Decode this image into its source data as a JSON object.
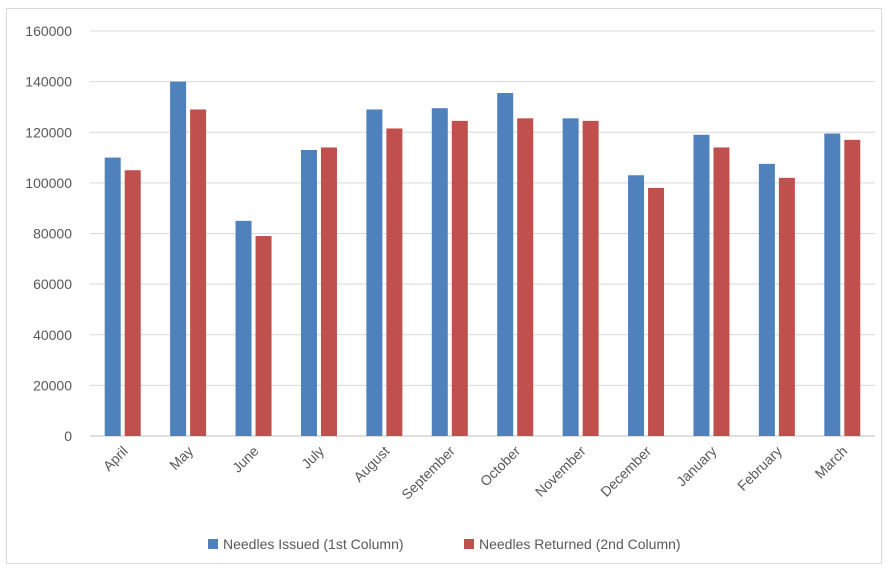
{
  "chart_data": {
    "type": "bar",
    "title": "",
    "xlabel": "",
    "ylabel": "",
    "categories": [
      "April",
      "May",
      "June",
      "July",
      "August",
      "September",
      "October",
      "November",
      "December",
      "January",
      "February",
      "March"
    ],
    "series": [
      {
        "name": "Needles Issued (1st Column)",
        "color": "#4f81bd",
        "values": [
          110000,
          140000,
          85000,
          113000,
          129000,
          129500,
          135500,
          125500,
          103000,
          119000,
          107500,
          119500
        ]
      },
      {
        "name": "Needles Returned (2nd Column)",
        "color": "#c0504d",
        "values": [
          105000,
          129000,
          79000,
          114000,
          121500,
          124500,
          125500,
          124500,
          98000,
          114000,
          102000,
          117000
        ]
      }
    ],
    "ylim": [
      0,
      160000
    ],
    "yticks": [
      0,
      20000,
      40000,
      60000,
      80000,
      100000,
      120000,
      140000,
      160000
    ],
    "grid": true,
    "legend_position": "bottom"
  }
}
